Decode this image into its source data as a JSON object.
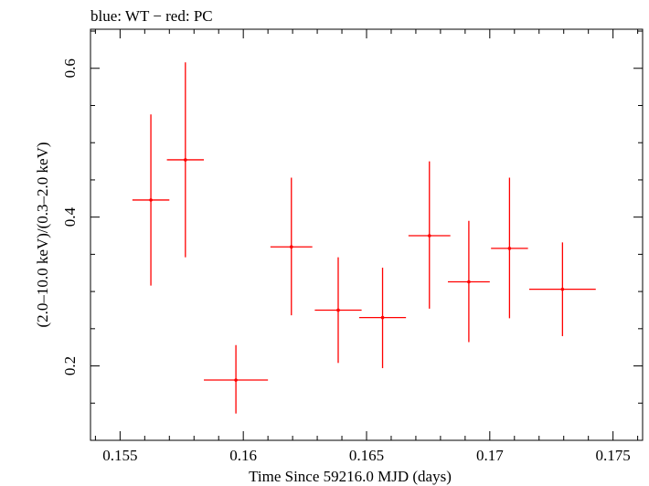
{
  "chart_data": {
    "type": "scatter",
    "title": "blue: WT − red: PC",
    "xlabel": "Time Since 59216.0 MJD (days)",
    "ylabel": "(2.0–10.0 keV)/(0.3–2.0 keV)",
    "xlim": [
      0.1538,
      0.1762
    ],
    "ylim": [
      0.1,
      0.6525
    ],
    "x_ticks": [
      0.155,
      0.16,
      0.165,
      0.17,
      0.175
    ],
    "x_tick_labels": [
      "0.155",
      "0.16",
      "0.165",
      "0.17",
      "0.175"
    ],
    "y_ticks": [
      0.2,
      0.4,
      0.6
    ],
    "y_tick_labels": [
      "0.2",
      "0.4",
      "0.6"
    ],
    "series": [
      {
        "name": "PC",
        "color": "#ff0000",
        "points": [
          {
            "x": 0.15625,
            "xerr": 0.00075,
            "y": 0.423,
            "ylo": 0.308,
            "yhi": 0.538
          },
          {
            "x": 0.15765,
            "xerr": 0.00075,
            "y": 0.477,
            "ylo": 0.346,
            "yhi": 0.608
          },
          {
            "x": 0.1597,
            "xerr": 0.0013,
            "y": 0.181,
            "ylo": 0.136,
            "yhi": 0.228
          },
          {
            "x": 0.16195,
            "xerr": 0.00085,
            "y": 0.36,
            "ylo": 0.268,
            "yhi": 0.453
          },
          {
            "x": 0.16385,
            "xerr": 0.00095,
            "y": 0.275,
            "ylo": 0.204,
            "yhi": 0.346
          },
          {
            "x": 0.16565,
            "xerr": 0.00095,
            "y": 0.265,
            "ylo": 0.197,
            "yhi": 0.332
          },
          {
            "x": 0.16755,
            "xerr": 0.00085,
            "y": 0.375,
            "ylo": 0.277,
            "yhi": 0.475
          },
          {
            "x": 0.16915,
            "xerr": 0.00085,
            "y": 0.313,
            "ylo": 0.232,
            "yhi": 0.395
          },
          {
            "x": 0.1708,
            "xerr": 0.00075,
            "y": 0.358,
            "ylo": 0.264,
            "yhi": 0.453
          },
          {
            "x": 0.17295,
            "xerr": 0.00135,
            "y": 0.303,
            "ylo": 0.24,
            "yhi": 0.366
          }
        ]
      }
    ]
  }
}
